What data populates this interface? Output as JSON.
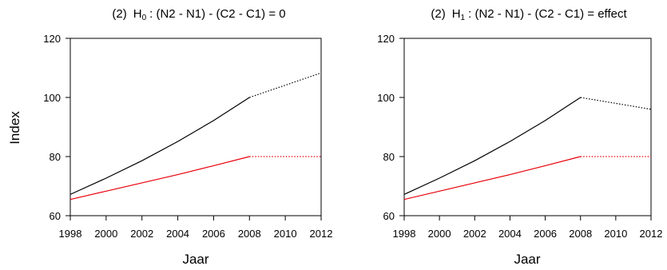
{
  "figure": {
    "ylabel": "Index"
  },
  "chart_data": [
    {
      "type": "line",
      "title": {
        "prefix": "(2)",
        "hyp_letter": "H",
        "hyp_sub": "0",
        "expr": ": (N2 - N1) - (C2 - C1) = 0"
      },
      "xlabel": "Jaar",
      "ylabel": "Index",
      "xlim": [
        1998,
        2012
      ],
      "ylim": [
        60,
        120
      ],
      "xticks": [
        1998,
        2000,
        2002,
        2004,
        2006,
        2008,
        2010,
        2012
      ],
      "yticks": [
        60,
        80,
        100,
        120
      ],
      "grid": false,
      "series": [
        {
          "color": "#000000",
          "style": "solid",
          "x": [
            1998,
            2000,
            2002,
            2004,
            2006,
            2008
          ],
          "y": [
            67.2,
            72.7,
            78.6,
            85.1,
            92.2,
            100
          ]
        },
        {
          "color": "#000000",
          "style": "dotted",
          "x": [
            2008,
            2012
          ],
          "y": [
            100,
            108.3
          ]
        },
        {
          "color": "#e8000b",
          "style": "solid",
          "x": [
            1998,
            2000,
            2002,
            2004,
            2006,
            2008
          ],
          "y": [
            65.5,
            68.3,
            71.1,
            73.9,
            76.9,
            80
          ]
        },
        {
          "color": "#e8000b",
          "style": "dotted",
          "x": [
            2008,
            2012
          ],
          "y": [
            80,
            80
          ]
        }
      ]
    },
    {
      "type": "line",
      "title": {
        "prefix": "(2)",
        "hyp_letter": "H",
        "hyp_sub": "1",
        "expr": ": (N2 - N1) - (C2 - C1) = effect"
      },
      "xlabel": "Jaar",
      "ylabel": "",
      "xlim": [
        1998,
        2012
      ],
      "ylim": [
        60,
        120
      ],
      "xticks": [
        1998,
        2000,
        2002,
        2004,
        2006,
        2008,
        2010,
        2012
      ],
      "yticks": [
        60,
        80,
        100,
        120
      ],
      "grid": false,
      "series": [
        {
          "color": "#000000",
          "style": "solid",
          "x": [
            1998,
            2000,
            2002,
            2004,
            2006,
            2008
          ],
          "y": [
            67.2,
            72.7,
            78.6,
            85.1,
            92.2,
            100
          ]
        },
        {
          "color": "#000000",
          "style": "dotted",
          "x": [
            2008,
            2012
          ],
          "y": [
            100,
            96
          ]
        },
        {
          "color": "#e8000b",
          "style": "solid",
          "x": [
            1998,
            2000,
            2002,
            2004,
            2006,
            2008
          ],
          "y": [
            65.5,
            68.3,
            71.1,
            73.9,
            76.9,
            80
          ]
        },
        {
          "color": "#e8000b",
          "style": "dotted",
          "x": [
            2008,
            2012
          ],
          "y": [
            80,
            80
          ]
        }
      ]
    }
  ]
}
